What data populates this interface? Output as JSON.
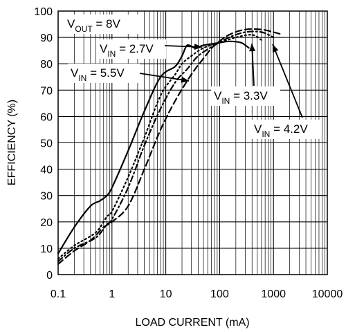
{
  "chart_data": {
    "type": "line",
    "title": "",
    "xlabel": "LOAD CURRENT (mA)",
    "ylabel": "EFFICIENCY (%)",
    "x_scale": "log",
    "xlim": [
      0.1,
      10000
    ],
    "ylim": [
      0,
      100
    ],
    "x_ticks": [
      "0.1",
      "1",
      "10",
      "100",
      "1000",
      "10000"
    ],
    "y_ticks": [
      "0",
      "10",
      "20",
      "30",
      "40",
      "50",
      "60",
      "70",
      "80",
      "90",
      "100"
    ],
    "grid": true,
    "annotations": {
      "vout": {
        "main": "V",
        "sub": "OUT",
        "rest": " = 8V"
      }
    },
    "series": [
      {
        "label": {
          "main": "V",
          "sub": "IN",
          "rest": " = 2.7V"
        },
        "dash": "solid",
        "points": [
          [
            0.1,
            8
          ],
          [
            0.2,
            18
          ],
          [
            0.4,
            26
          ],
          [
            0.6,
            28
          ],
          [
            0.8,
            30
          ],
          [
            1,
            33
          ],
          [
            2,
            47
          ],
          [
            4,
            62
          ],
          [
            8,
            75
          ],
          [
            15,
            79
          ],
          [
            20,
            83
          ],
          [
            25,
            87
          ],
          [
            35,
            86
          ],
          [
            50,
            87
          ],
          [
            100,
            88
          ],
          [
            150,
            88.5
          ],
          [
            250,
            88
          ],
          [
            350,
            86
          ]
        ]
      },
      {
        "label": {
          "main": "V",
          "sub": "IN",
          "rest": " = 3.3V"
        },
        "dash": "dot",
        "points": [
          [
            0.1,
            6
          ],
          [
            0.2,
            11
          ],
          [
            0.5,
            16
          ],
          [
            0.8,
            22
          ],
          [
            1,
            24
          ],
          [
            2,
            37
          ],
          [
            4,
            52
          ],
          [
            8,
            68
          ],
          [
            15,
            76
          ],
          [
            20,
            80
          ],
          [
            30,
            83
          ],
          [
            50,
            86
          ],
          [
            100,
            88
          ],
          [
            200,
            90
          ],
          [
            400,
            91
          ],
          [
            600,
            89
          ]
        ]
      },
      {
        "label": {
          "main": "V",
          "sub": "IN",
          "rest": " = 4.2V"
        },
        "dash": "dashdot",
        "points": [
          [
            0.1,
            5
          ],
          [
            0.2,
            10
          ],
          [
            0.5,
            14
          ],
          [
            0.8,
            19
          ],
          [
            1,
            21
          ],
          [
            2,
            33
          ],
          [
            4,
            49
          ],
          [
            8,
            63
          ],
          [
            15,
            73
          ],
          [
            25,
            78
          ],
          [
            40,
            83
          ],
          [
            80,
            87
          ],
          [
            150,
            90
          ],
          [
            300,
            92
          ],
          [
            600,
            92
          ],
          [
            1000,
            90
          ]
        ]
      },
      {
        "label": {
          "main": "V",
          "sub": "IN",
          "rest": " = 5.5V"
        },
        "dash": "dash",
        "points": [
          [
            0.1,
            4
          ],
          [
            0.2,
            9
          ],
          [
            0.4,
            13
          ],
          [
            0.7,
            18
          ],
          [
            1,
            20
          ],
          [
            2,
            26
          ],
          [
            4,
            40
          ],
          [
            8,
            55
          ],
          [
            15,
            66
          ],
          [
            30,
            76
          ],
          [
            50,
            82
          ],
          [
            80,
            87
          ],
          [
            150,
            91
          ],
          [
            300,
            93
          ],
          [
            600,
            93
          ],
          [
            1000,
            92
          ],
          [
            1500,
            91
          ]
        ]
      }
    ]
  }
}
